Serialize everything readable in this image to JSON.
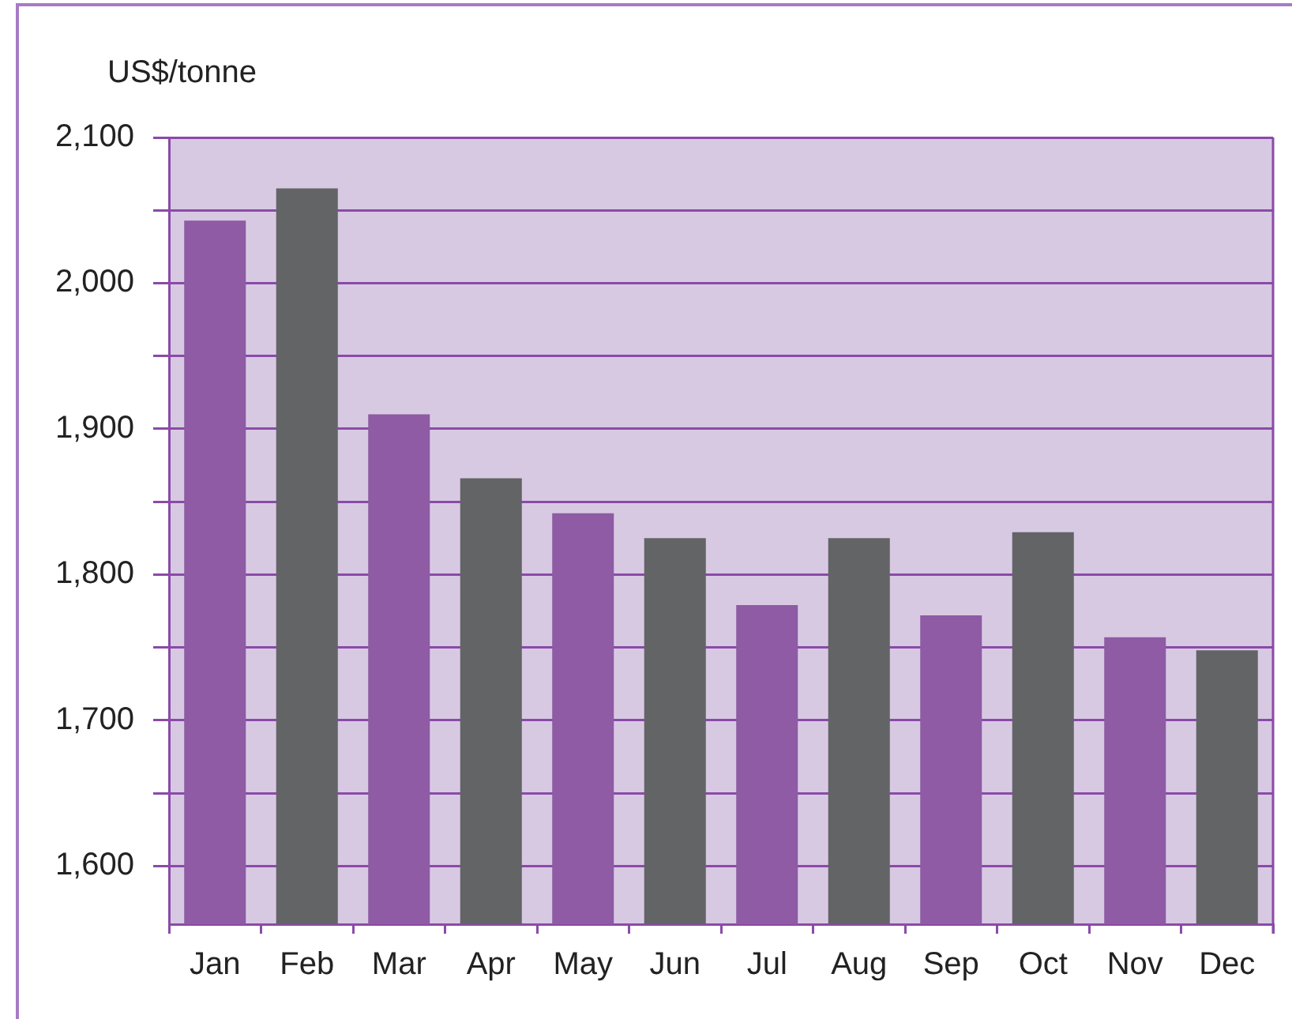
{
  "chart_data": {
    "type": "bar",
    "ylabel": "US$/tonne",
    "categories": [
      "Jan",
      "Feb",
      "Mar",
      "Apr",
      "May",
      "Jun",
      "Jul",
      "Aug",
      "Sep",
      "Oct",
      "Nov",
      "Dec"
    ],
    "values": [
      2043,
      2065,
      1910,
      1866,
      1842,
      1825,
      1779,
      1825,
      1772,
      1829,
      1757,
      1748
    ],
    "colors": [
      "#8e5ba4",
      "#636466",
      "#8e5ba4",
      "#636466",
      "#8e5ba4",
      "#636466",
      "#8e5ba4",
      "#636466",
      "#8e5ba4",
      "#636466",
      "#8e5ba4",
      "#636466"
    ],
    "ylim": [
      1560,
      2100
    ],
    "yticks": [
      {
        "value": 1600,
        "label": "1,600"
      },
      {
        "value": 1650,
        "label": null
      },
      {
        "value": 1700,
        "label": "1,700"
      },
      {
        "value": 1750,
        "label": null
      },
      {
        "value": 1800,
        "label": "1,800"
      },
      {
        "value": 1850,
        "label": null
      },
      {
        "value": 1900,
        "label": "1,900"
      },
      {
        "value": 1950,
        "label": null
      },
      {
        "value": 2000,
        "label": "2,000"
      },
      {
        "value": 2050,
        "label": null
      },
      {
        "value": 2100,
        "label": "2,100"
      }
    ],
    "grid": "y"
  }
}
